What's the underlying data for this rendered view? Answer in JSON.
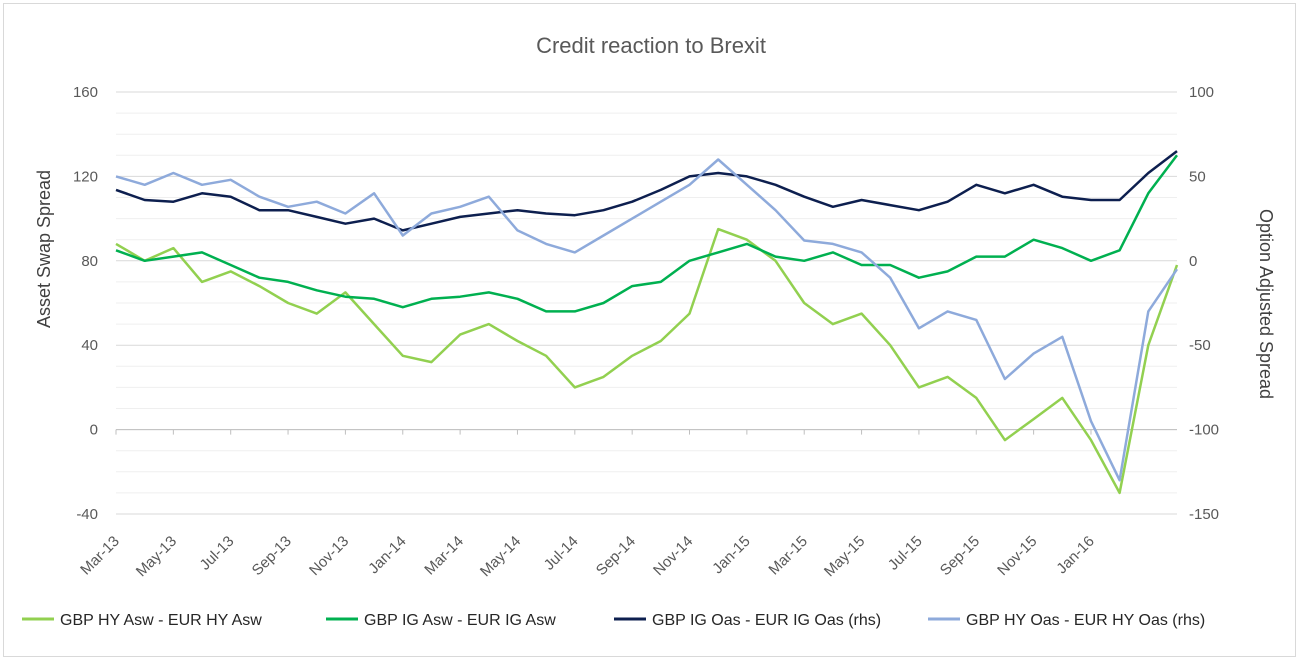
{
  "chart_data": {
    "type": "line",
    "title": "Credit reaction to Brexit",
    "ylabel_left": "Asset Swap Spread",
    "ylabel_right": "Option Adjusted Spread",
    "ylim_left": [
      -40,
      160
    ],
    "ylim_right": [
      -150,
      100
    ],
    "yticks_left": [
      "-40",
      "0",
      "40",
      "80",
      "120",
      "160"
    ],
    "yticks_right": [
      "-150",
      "-100",
      "-50",
      "0",
      "50",
      "100"
    ],
    "x_start": "2013-03",
    "x_end": "2016-04",
    "xticks": [
      "Mar-13",
      "May-13",
      "Jul-13",
      "Sep-13",
      "Nov-13",
      "Jan-14",
      "Mar-14",
      "May-14",
      "Jul-14",
      "Sep-14",
      "Nov-14",
      "Jan-15",
      "Mar-15",
      "May-15",
      "Jul-15",
      "Sep-15",
      "Nov-15",
      "Jan-16"
    ],
    "grid": true,
    "legend_position": "bottom",
    "series": [
      {
        "name": "GBP HY Asw - EUR HY Asw",
        "axis": "left",
        "color": "#92d050",
        "x": [
          "2013-03",
          "2013-04",
          "2013-05",
          "2013-06",
          "2013-07",
          "2013-08",
          "2013-09",
          "2013-10",
          "2013-11",
          "2013-12",
          "2014-01",
          "2014-02",
          "2014-03",
          "2014-04",
          "2014-05",
          "2014-06",
          "2014-07",
          "2014-08",
          "2014-09",
          "2014-10",
          "2014-11",
          "2014-12",
          "2015-01",
          "2015-02",
          "2015-03",
          "2015-04",
          "2015-05",
          "2015-06",
          "2015-07",
          "2015-08",
          "2015-09",
          "2015-10",
          "2015-11",
          "2015-12",
          "2016-01",
          "2016-02",
          "2016-03",
          "2016-04"
        ],
        "values": [
          88,
          80,
          86,
          70,
          75,
          68,
          60,
          55,
          65,
          50,
          35,
          32,
          45,
          50,
          42,
          35,
          20,
          25,
          35,
          42,
          55,
          95,
          90,
          80,
          60,
          50,
          55,
          40,
          20,
          25,
          15,
          -5,
          5,
          15,
          -5,
          -30,
          40,
          78
        ]
      },
      {
        "name": "GBP IG Asw - EUR IG Asw",
        "axis": "left",
        "color": "#00b050",
        "x": [
          "2013-03",
          "2013-04",
          "2013-05",
          "2013-06",
          "2013-07",
          "2013-08",
          "2013-09",
          "2013-10",
          "2013-11",
          "2013-12",
          "2014-01",
          "2014-02",
          "2014-03",
          "2014-04",
          "2014-05",
          "2014-06",
          "2014-07",
          "2014-08",
          "2014-09",
          "2014-10",
          "2014-11",
          "2014-12",
          "2015-01",
          "2015-02",
          "2015-03",
          "2015-04",
          "2015-05",
          "2015-06",
          "2015-07",
          "2015-08",
          "2015-09",
          "2015-10",
          "2015-11",
          "2015-12",
          "2016-01",
          "2016-02",
          "2016-03",
          "2016-04"
        ],
        "values": [
          85,
          80,
          82,
          84,
          78,
          72,
          70,
          66,
          63,
          62,
          58,
          62,
          63,
          65,
          62,
          56,
          56,
          60,
          68,
          70,
          80,
          84,
          88,
          82,
          80,
          84,
          78,
          78,
          72,
          75,
          82,
          82,
          90,
          86,
          80,
          85,
          112,
          130
        ]
      },
      {
        "name": "GBP IG Oas - EUR IG Oas (rhs)",
        "axis": "right",
        "color": "#0d1f4f",
        "x": [
          "2013-03",
          "2013-04",
          "2013-05",
          "2013-06",
          "2013-07",
          "2013-08",
          "2013-09",
          "2013-10",
          "2013-11",
          "2013-12",
          "2014-01",
          "2014-02",
          "2014-03",
          "2014-04",
          "2014-05",
          "2014-06",
          "2014-07",
          "2014-08",
          "2014-09",
          "2014-10",
          "2014-11",
          "2014-12",
          "2015-01",
          "2015-02",
          "2015-03",
          "2015-04",
          "2015-05",
          "2015-06",
          "2015-07",
          "2015-08",
          "2015-09",
          "2015-10",
          "2015-11",
          "2015-12",
          "2016-01",
          "2016-02",
          "2016-03",
          "2016-04"
        ],
        "values": [
          42,
          36,
          35,
          40,
          38,
          30,
          30,
          26,
          22,
          25,
          18,
          22,
          26,
          28,
          30,
          28,
          27,
          30,
          35,
          42,
          50,
          52,
          50,
          45,
          38,
          32,
          36,
          33,
          30,
          35,
          45,
          40,
          45,
          38,
          36,
          36,
          52,
          65
        ]
      },
      {
        "name": "GBP HY Oas - EUR HY Oas (rhs)",
        "axis": "right",
        "color": "#8eaadb",
        "x": [
          "2013-03",
          "2013-04",
          "2013-05",
          "2013-06",
          "2013-07",
          "2013-08",
          "2013-09",
          "2013-10",
          "2013-11",
          "2013-12",
          "2014-01",
          "2014-02",
          "2014-03",
          "2014-04",
          "2014-05",
          "2014-06",
          "2014-07",
          "2014-08",
          "2014-09",
          "2014-10",
          "2014-11",
          "2014-12",
          "2015-01",
          "2015-02",
          "2015-03",
          "2015-04",
          "2015-05",
          "2015-06",
          "2015-07",
          "2015-08",
          "2015-09",
          "2015-10",
          "2015-11",
          "2015-12",
          "2016-01",
          "2016-02",
          "2016-03",
          "2016-04"
        ],
        "values": [
          50,
          45,
          52,
          45,
          48,
          38,
          32,
          35,
          28,
          40,
          15,
          28,
          32,
          38,
          18,
          10,
          5,
          15,
          25,
          35,
          45,
          60,
          45,
          30,
          12,
          10,
          5,
          -10,
          -40,
          -30,
          -35,
          -70,
          -55,
          -45,
          -95,
          -130,
          -30,
          -5
        ]
      }
    ]
  }
}
